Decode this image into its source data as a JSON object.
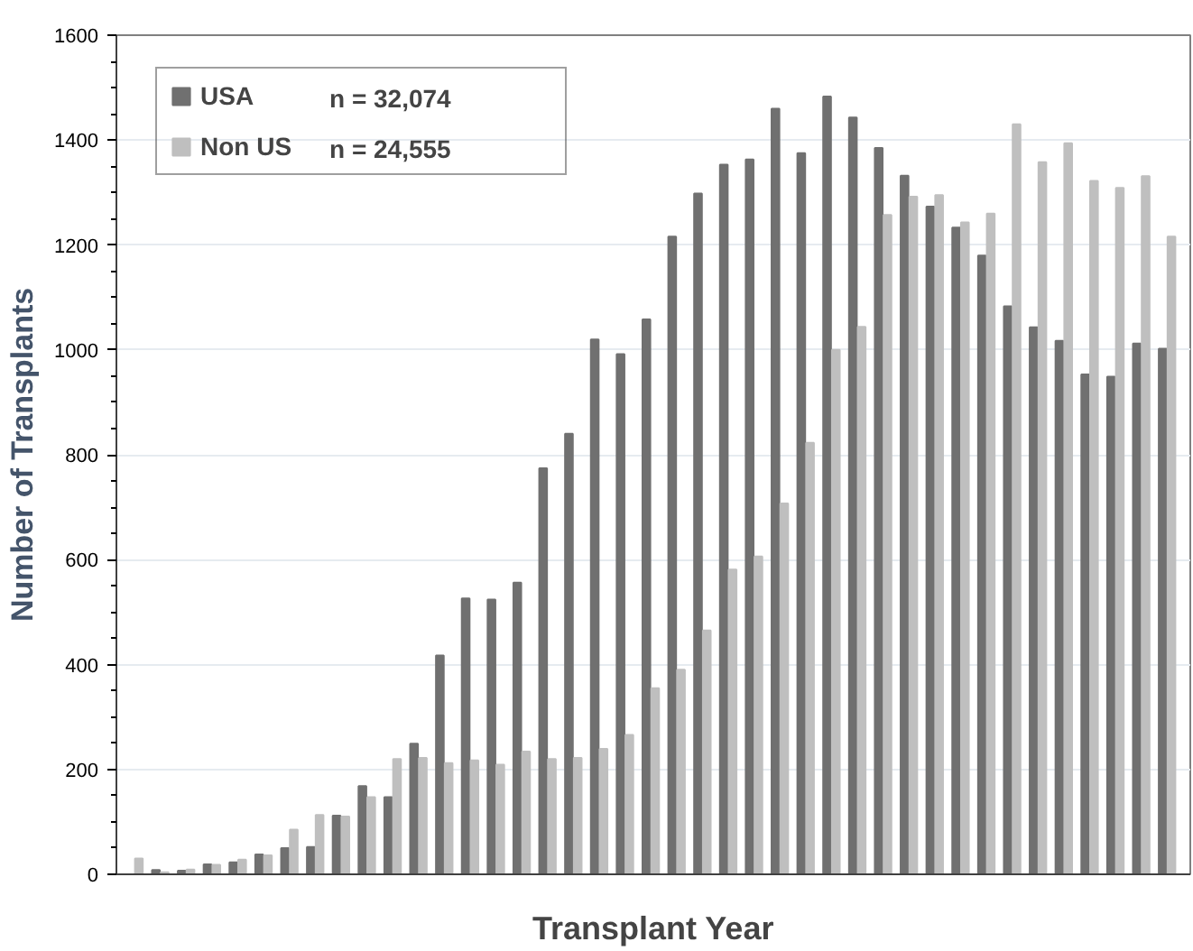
{
  "chart_data": {
    "type": "bar",
    "xlabel": "Transplant Year",
    "ylabel": "Number of Transplants",
    "categories": [
      null,
      null,
      null,
      null,
      null,
      null,
      null,
      null,
      null,
      null,
      null,
      null,
      null,
      null,
      null,
      null,
      null,
      null,
      null,
      null,
      null,
      null,
      null,
      null,
      null,
      null,
      null,
      null,
      null,
      null,
      null,
      null,
      null,
      null,
      null,
      null,
      null,
      null,
      null,
      null,
      null
    ],
    "series": [
      {
        "name": "USA",
        "color": "#707070",
        "values": [
          0,
          8,
          7,
          19,
          23,
          38,
          50,
          52,
          112,
          168,
          147,
          249,
          417,
          526,
          524,
          556,
          774,
          840,
          1020,
          992,
          1058,
          1216,
          1298,
          1353,
          1363,
          1460,
          1375,
          1483,
          1443,
          1385,
          1332,
          1273,
          1233,
          1180,
          1083,
          1043,
          1017,
          953,
          949,
          1012,
          1002
        ]
      },
      {
        "name": "Non US",
        "color": "#bfbfbf",
        "values": [
          30,
          4,
          9,
          18,
          28,
          36,
          85,
          113,
          110,
          147,
          220,
          222,
          212,
          217,
          209,
          234,
          220,
          222,
          239,
          266,
          355,
          390,
          465,
          581,
          606,
          707,
          823,
          1000,
          1044,
          1257,
          1292,
          1295,
          1243,
          1260,
          1430,
          1358,
          1394,
          1322,
          1309,
          1331,
          1216
        ]
      }
    ],
    "annotations": [
      "n = 32,074",
      "n =  24,555"
    ],
    "ylim": [
      0,
      1600
    ],
    "yticks": [
      0,
      200,
      400,
      600,
      800,
      1000,
      1200,
      1400,
      1600
    ],
    "grid": "y",
    "legend": "top left",
    "tick_labels": "y"
  }
}
